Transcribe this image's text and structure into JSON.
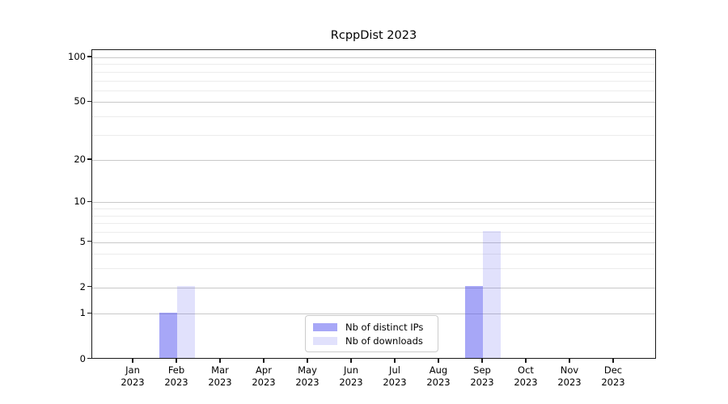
{
  "title": "RcppDist 2023",
  "chart_data": {
    "type": "bar",
    "title": "RcppDist 2023",
    "xlabel": "",
    "ylabel": "",
    "x_months": [
      "Jan",
      "Feb",
      "Mar",
      "Apr",
      "May",
      "Jun",
      "Jul",
      "Aug",
      "Sep",
      "Oct",
      "Nov",
      "Dec"
    ],
    "x_year": "2023",
    "series": [
      {
        "name": "Nb of distinct IPs",
        "color": "rgba(80,80,240,0.50)",
        "values": [
          0,
          1,
          0,
          0,
          0,
          0,
          0,
          0,
          2,
          0,
          0,
          0
        ]
      },
      {
        "name": "Nb of downloads",
        "color": "rgba(80,80,240,0.17)",
        "values": [
          0,
          2,
          0,
          0,
          0,
          0,
          0,
          0,
          6,
          0,
          0,
          0
        ]
      }
    ],
    "y_scale": "log1p",
    "y_major_ticks": [
      0,
      1,
      2,
      5,
      10,
      20,
      50,
      100
    ],
    "y_minor_gridlines": [
      3,
      4,
      6,
      7,
      8,
      9,
      30,
      40,
      60,
      70,
      80,
      90
    ],
    "ylim": [
      0,
      110
    ],
    "grid": "horizontal",
    "legend_position": "lower center inside"
  },
  "colors": {
    "bar_distinct_ips_rendered": "#a9a9f7",
    "bar_downloads_rendered": "#dcdcfa",
    "gridline_major": "#c9c9c9",
    "gridline_minor": "#ececec",
    "axis": "#1a1a1a"
  }
}
